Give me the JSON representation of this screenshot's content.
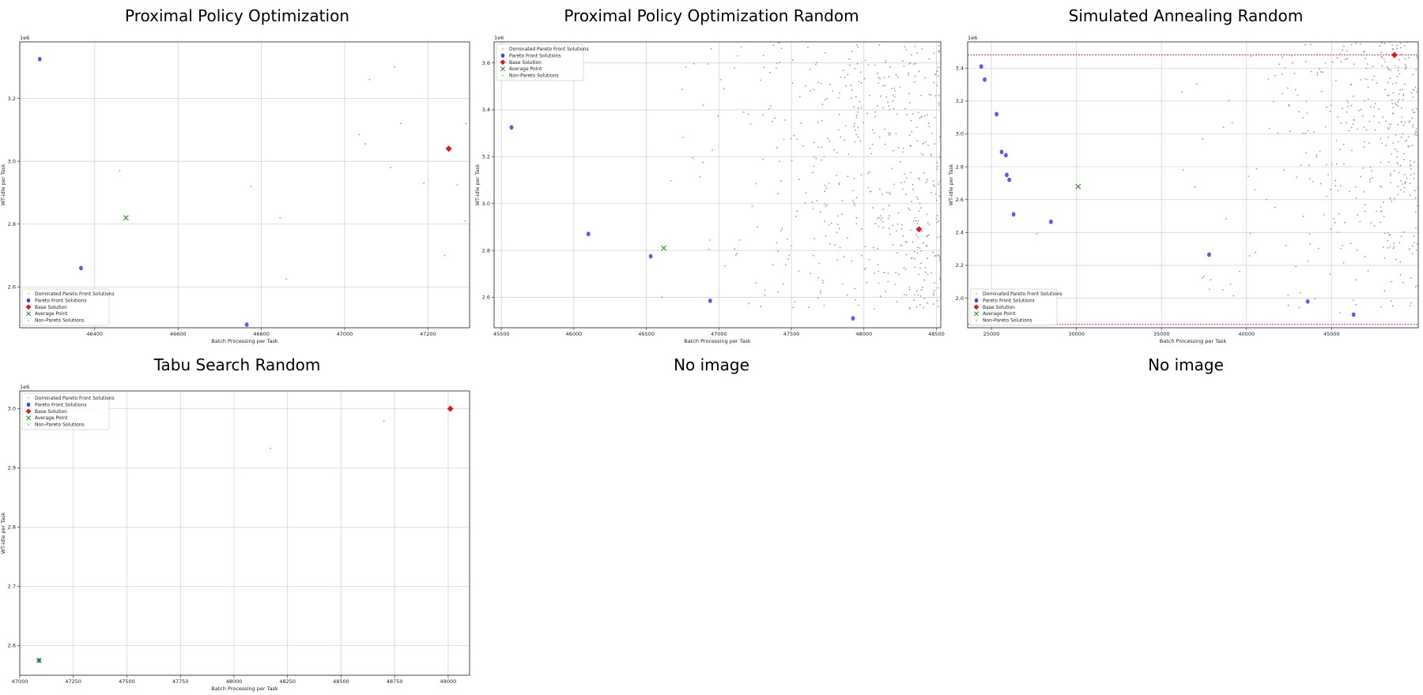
{
  "legend_labels": {
    "dominated": "Dominated Pareto Front Solutions",
    "pareto": "Pareto Front Solutions",
    "base": "Base Solution",
    "average": "Average Point",
    "non_pareto": "Non-Pareto Solutions"
  },
  "colors": {
    "pareto": "#3b3bff",
    "base": "#e8141a",
    "average": "#1a8f1a",
    "non_pareto": "#9a9a9a",
    "dominated": "#f0c040",
    "hline": "#b000b0"
  },
  "empty_panels": [
    {
      "title": "No image"
    },
    {
      "title": "No image"
    }
  ],
  "chart_data": [
    {
      "type": "scatter",
      "title": "Proximal Policy Optimization",
      "xlabel": "Batch Processing per Task",
      "ylabel": "WT-idle per Task",
      "y_scale_label": "1e6",
      "xlim": [
        46220,
        47300
      ],
      "ylim": [
        2.47,
        3.38
      ],
      "xticks": [
        46400,
        46600,
        46800,
        47000,
        47200
      ],
      "yticks": [
        2.6,
        2.8,
        3.0,
        3.2
      ],
      "legend_loc": "lower-left",
      "legend_order": [
        "dominated",
        "pareto",
        "base",
        "average",
        "non_pareto"
      ],
      "pareto": [
        [
          46268,
          3.325
        ],
        [
          46367,
          2.66
        ],
        [
          46765,
          2.48
        ]
      ],
      "base": [
        [
          47250,
          3.04
        ]
      ],
      "average": [
        [
          46475,
          2.82
        ]
      ],
      "non_pareto": [
        [
          46460,
          2.97
        ],
        [
          46775,
          2.92
        ],
        [
          46845,
          2.82
        ],
        [
          46860,
          2.625
        ],
        [
          47060,
          3.26
        ],
        [
          47120,
          3.3
        ],
        [
          47035,
          3.085
        ],
        [
          47050,
          3.055
        ],
        [
          47110,
          2.98
        ],
        [
          47135,
          3.12
        ],
        [
          47190,
          2.93
        ],
        [
          47240,
          2.7
        ],
        [
          47270,
          2.925
        ],
        [
          47290,
          2.81
        ],
        [
          47292,
          3.12
        ]
      ],
      "dominated": []
    },
    {
      "type": "scatter",
      "title": "Proximal Policy Optimization Random",
      "xlabel": "Batch Processing per Task",
      "ylabel": "WT-idle per Task",
      "y_scale_label": "1e6",
      "xlim": [
        45450,
        48530
      ],
      "ylim": [
        2.47,
        3.69
      ],
      "xticks": [
        45500,
        46000,
        46500,
        47000,
        47500,
        48000,
        48500
      ],
      "yticks": [
        2.6,
        2.8,
        3.0,
        3.2,
        3.4,
        3.6
      ],
      "legend_loc": "upper-left",
      "legend_order": [
        "dominated",
        "pareto",
        "base",
        "average",
        "non_pareto"
      ],
      "pareto": [
        [
          45570,
          3.325
        ],
        [
          46100,
          2.87
        ],
        [
          46530,
          2.775
        ],
        [
          46940,
          2.585
        ],
        [
          47925,
          2.51
        ]
      ],
      "base": [
        [
          48380,
          2.89
        ]
      ],
      "average": [
        [
          46620,
          2.81
        ]
      ],
      "dominated": [
        [
          47130,
          3.63
        ],
        [
          47170,
          3.39
        ],
        [
          47220,
          3.34
        ],
        [
          47500,
          2.82
        ],
        [
          47650,
          2.98
        ]
      ],
      "non_pareto_cloud": {
        "count": 520,
        "x_range": [
          46550,
          48530
        ],
        "y_range": [
          2.55,
          3.69
        ],
        "density": "increasing-to-right"
      }
    },
    {
      "type": "scatter",
      "title": "Simulated Annealing Random",
      "xlabel": "Batch Processing per Task",
      "ylabel": "WT-idle per Task",
      "y_scale_label": "1e6",
      "xlim": [
        23600,
        50100
      ],
      "ylim": [
        1.82,
        3.56
      ],
      "xticks": [
        25000,
        30000,
        35000,
        40000,
        45000
      ],
      "yticks": [
        2.0,
        2.2,
        2.4,
        2.6,
        2.8,
        3.0,
        3.2,
        3.4
      ],
      "legend_loc": "lower-left",
      "legend_order": [
        "dominated",
        "pareto",
        "base",
        "average",
        "non_pareto"
      ],
      "pareto": [
        [
          24400,
          3.41
        ],
        [
          24600,
          3.33
        ],
        [
          25300,
          3.12
        ],
        [
          25600,
          2.89
        ],
        [
          25850,
          2.87
        ],
        [
          25900,
          2.75
        ],
        [
          26050,
          2.72
        ],
        [
          26300,
          2.51
        ],
        [
          28500,
          2.465
        ],
        [
          37800,
          2.265
        ],
        [
          43600,
          1.98
        ],
        [
          46300,
          1.9
        ]
      ],
      "base": [
        [
          48700,
          3.48
        ]
      ],
      "average": [
        [
          30100,
          2.68
        ]
      ],
      "hlines": [
        3.48,
        1.84
      ],
      "dominated": [],
      "non_pareto_cloud": {
        "count": 420,
        "x_range": [
          24500,
          50100
        ],
        "y_range": [
          1.9,
          3.56
        ],
        "density": "dense-upper-right"
      }
    },
    {
      "type": "scatter",
      "title": "Tabu Search Random",
      "xlabel": "Batch Processing per Task",
      "ylabel": "WT-idle per Task",
      "y_scale_label": "1e6",
      "xlim": [
        47000,
        49100
      ],
      "ylim": [
        2.55,
        3.03
      ],
      "xticks": [
        47000,
        47250,
        47500,
        47750,
        48000,
        48250,
        48500,
        48750,
        49000
      ],
      "yticks": [
        2.6,
        2.7,
        2.8,
        2.9,
        3.0
      ],
      "legend_loc": "upper-left",
      "legend_order": [
        "dominated",
        "pareto",
        "base",
        "average",
        "non_pareto"
      ],
      "pareto": [
        [
          47090,
          2.575
        ]
      ],
      "base": [
        [
          49010,
          3.0
        ]
      ],
      "average": [
        [
          47090,
          2.575
        ]
      ],
      "non_pareto": [
        [
          48170,
          2.933
        ],
        [
          48700,
          2.979
        ]
      ],
      "dominated": []
    }
  ]
}
